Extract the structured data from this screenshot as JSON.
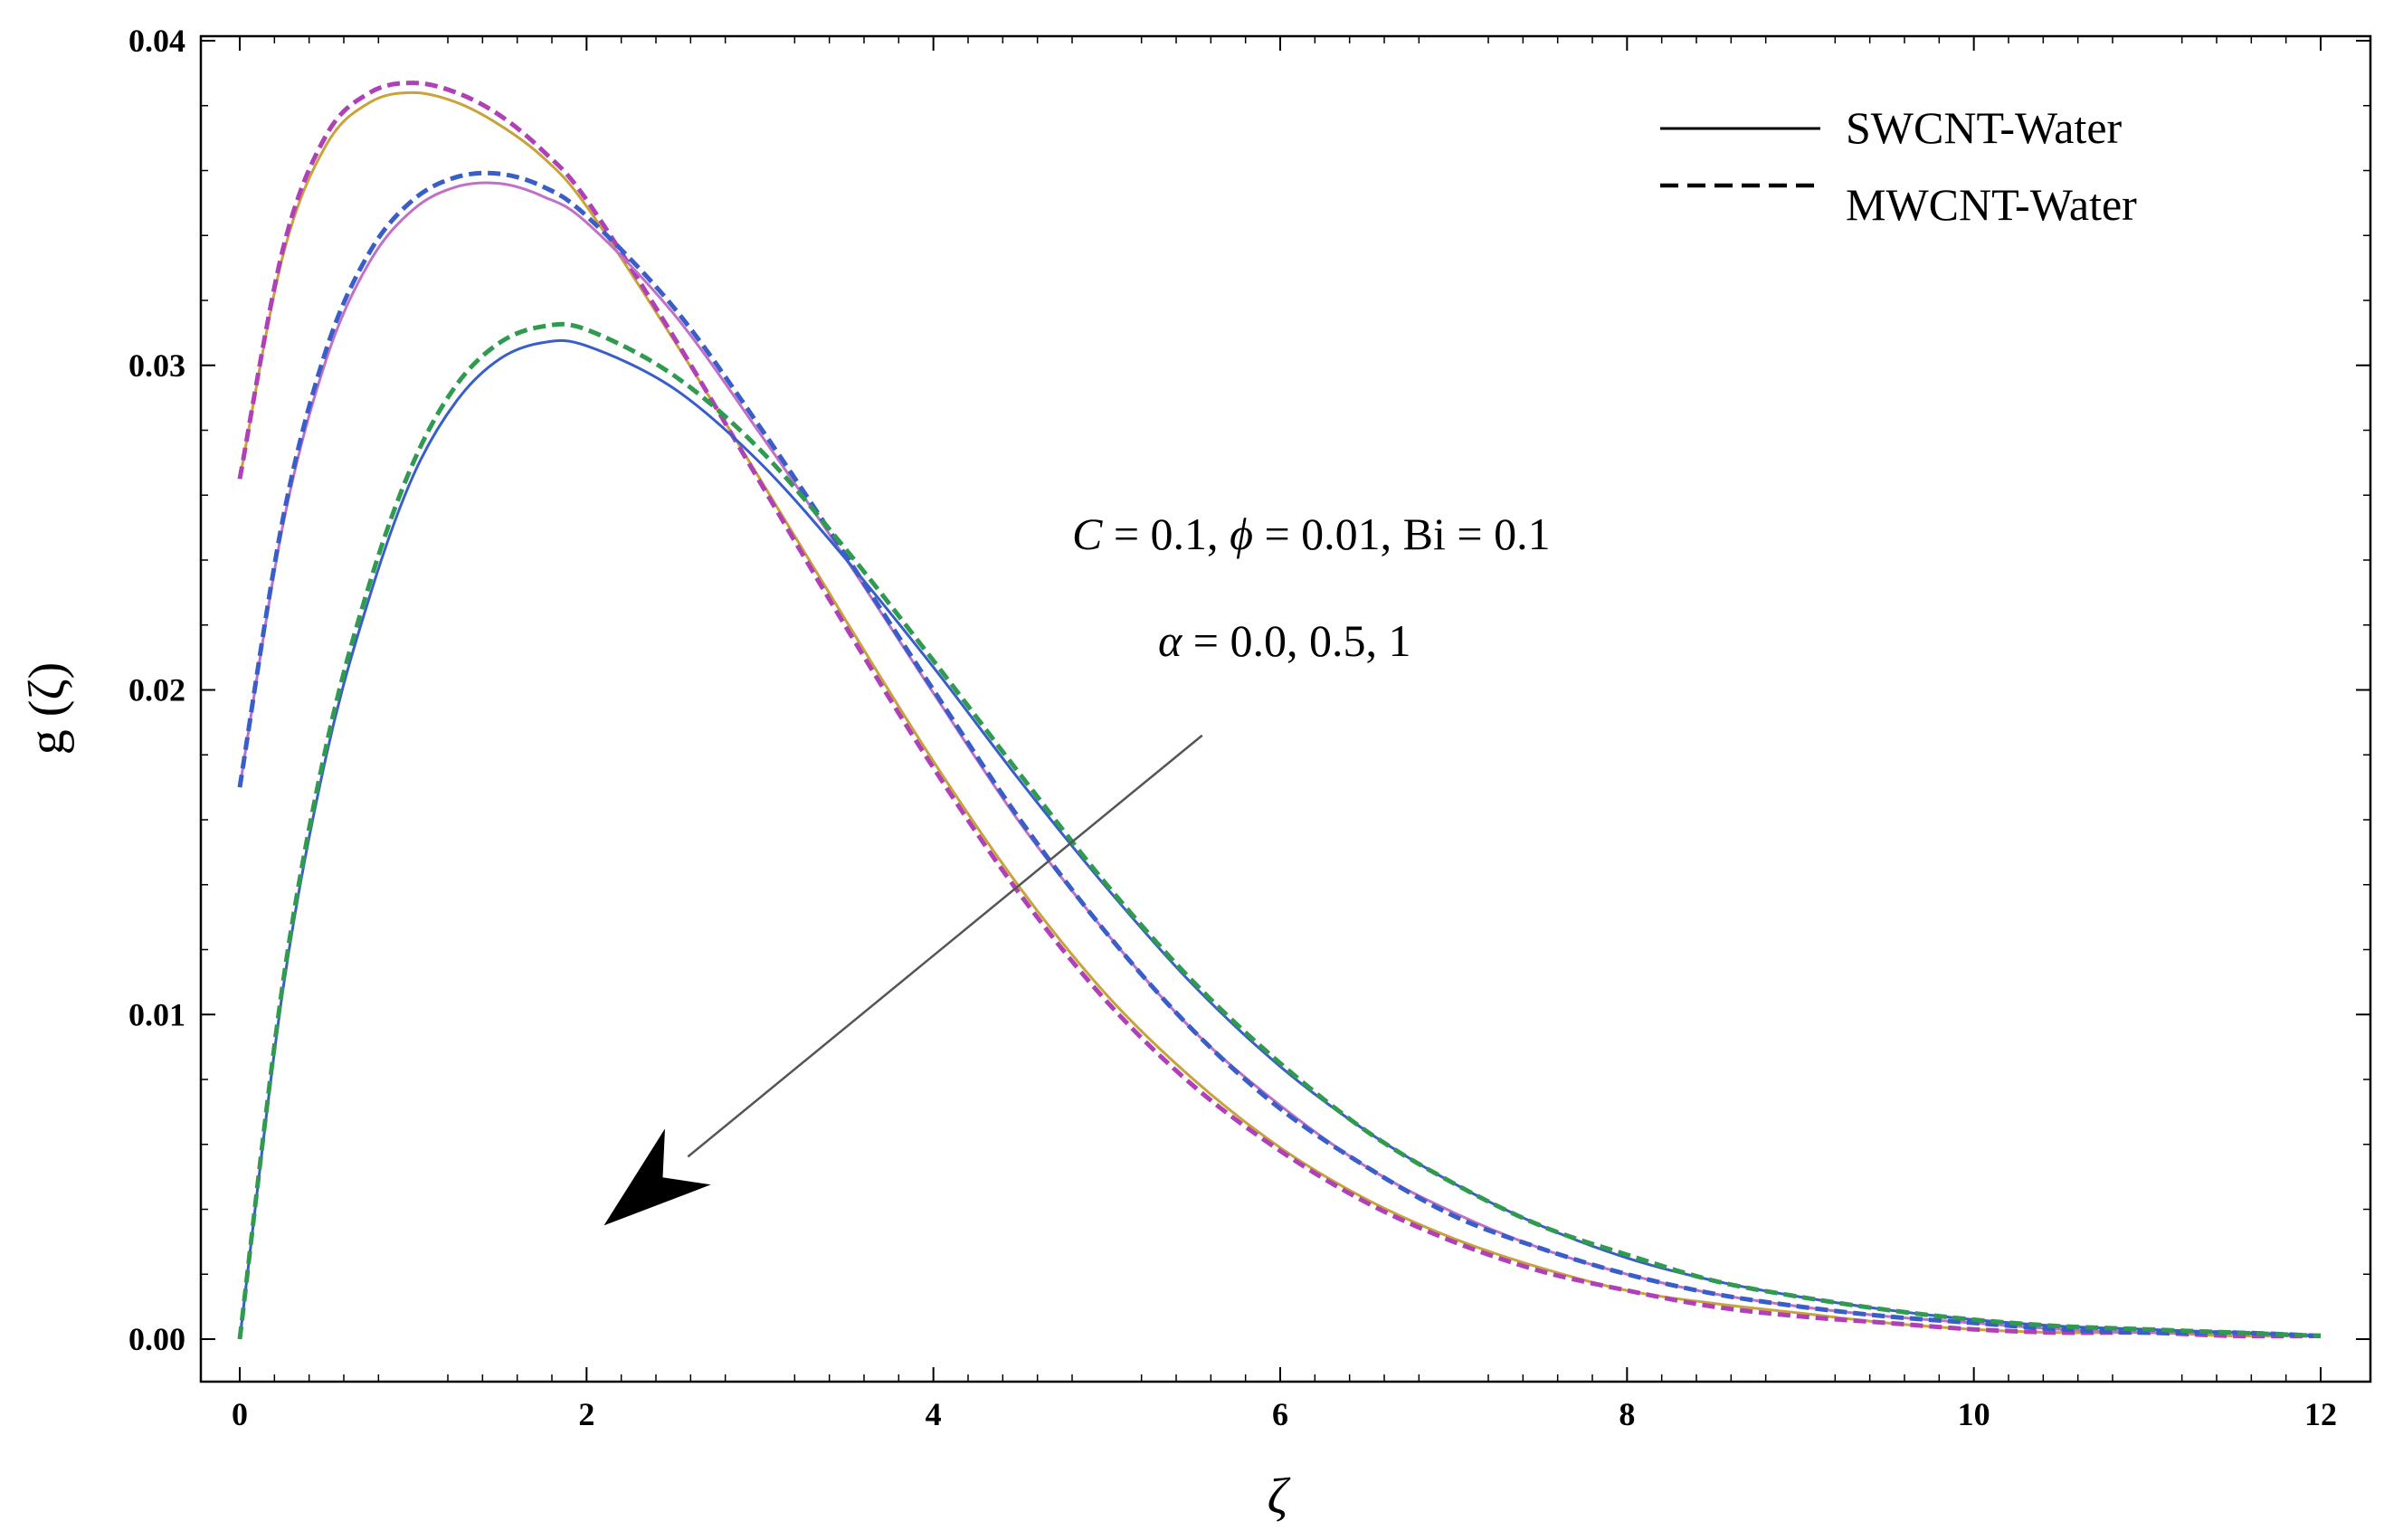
{
  "chart_data": {
    "type": "line",
    "title": "",
    "xlabel": "ζ",
    "ylabel": "g (ζ)",
    "xlim": [
      0,
      12
    ],
    "ylim": [
      0,
      0.04
    ],
    "x_ticks": [
      0,
      2,
      4,
      6,
      8,
      10,
      12
    ],
    "x_tick_labels": [
      "0",
      "2",
      "4",
      "6",
      "8",
      "10",
      "12"
    ],
    "y_ticks": [
      0,
      0.01,
      0.02,
      0.03,
      0.04
    ],
    "y_tick_labels": [
      "0.00",
      "0.01",
      "0.02",
      "0.03",
      "0.04"
    ],
    "grid": false,
    "legend": {
      "position": "top-right",
      "entries": [
        {
          "label": "SWCNT-Water",
          "style": "solid"
        },
        {
          "label": "MWCNT-Water",
          "style": "dashed"
        }
      ]
    },
    "annotation": {
      "line1": {
        "C": "C",
        "eq1": " = 0.1,  ",
        "phi": "ϕ",
        "eq2": " = 0.01,  Bi = 0.1"
      },
      "line2": {
        "alpha": "α",
        "eq": " = 0.0,  0.5,  1"
      },
      "arrow_from": [
        5.55,
        0.0186
      ],
      "arrow_to": [
        2.1,
        0.0035
      ]
    },
    "x": [
      0,
      0.25,
      0.5,
      0.75,
      1.0,
      1.25,
      1.5,
      1.75,
      2.0,
      2.5,
      3.0,
      3.5,
      4.0,
      4.5,
      5.0,
      5.5,
      6.0,
      6.5,
      7.0,
      7.5,
      8.0,
      8.5,
      9.0,
      9.5,
      10.0,
      10.5,
      11.0,
      11.5,
      12.0
    ],
    "series": [
      {
        "style": "solid",
        "color": "#c9a23a",
        "values": [
          0.0265,
          0.0334,
          0.0368,
          0.0381,
          0.0384,
          0.0381,
          0.0374,
          0.0364,
          0.0349,
          0.0308,
          0.0265,
          0.0221,
          0.0178,
          0.0139,
          0.0106,
          0.008,
          0.0059,
          0.0043,
          0.0031,
          0.0022,
          0.0015,
          0.0011,
          0.0008,
          0.0005,
          0.0003,
          0.0002,
          0.0002,
          0.0001,
          0.0001
        ]
      },
      {
        "style": "dashed",
        "color": "#b040b8",
        "values": [
          0.0265,
          0.0336,
          0.0371,
          0.0384,
          0.0387,
          0.0384,
          0.0377,
          0.0366,
          0.0351,
          0.0309,
          0.0264,
          0.0219,
          0.0176,
          0.0137,
          0.0104,
          0.0078,
          0.0058,
          0.0042,
          0.003,
          0.0021,
          0.0015,
          0.001,
          0.0007,
          0.0005,
          0.0003,
          0.0002,
          0.0002,
          0.0001,
          0.0001
        ]
      },
      {
        "style": "solid",
        "color": "#c070c8",
        "values": [
          0.017,
          0.0251,
          0.0302,
          0.0332,
          0.0348,
          0.0355,
          0.0356,
          0.0352,
          0.0344,
          0.0316,
          0.0279,
          0.024,
          0.0199,
          0.0159,
          0.0125,
          0.0095,
          0.0072,
          0.0053,
          0.0039,
          0.0028,
          0.002,
          0.0014,
          0.001,
          0.0007,
          0.0005,
          0.0003,
          0.0002,
          0.0002,
          0.0001
        ]
      },
      {
        "style": "dashed",
        "color": "#3a5ec8",
        "values": [
          0.017,
          0.0253,
          0.0305,
          0.0335,
          0.0351,
          0.0358,
          0.0359,
          0.0355,
          0.0346,
          0.0318,
          0.0281,
          0.0241,
          0.02,
          0.016,
          0.0125,
          0.0095,
          0.0071,
          0.0053,
          0.0038,
          0.0028,
          0.002,
          0.0014,
          0.001,
          0.0007,
          0.0005,
          0.0003,
          0.0002,
          0.0002,
          0.0001
        ]
      },
      {
        "style": "solid",
        "color": "#3a5ec8",
        "values": [
          0.0,
          0.0108,
          0.018,
          0.0229,
          0.0266,
          0.0289,
          0.0302,
          0.0307,
          0.0306,
          0.0293,
          0.027,
          0.024,
          0.0207,
          0.0172,
          0.0139,
          0.0109,
          0.0084,
          0.0064,
          0.0048,
          0.0035,
          0.0025,
          0.0018,
          0.0013,
          0.0009,
          0.0006,
          0.0004,
          0.0003,
          0.0002,
          0.0001
        ]
      },
      {
        "style": "dashed",
        "color": "#2f9a50",
        "values": [
          0.0,
          0.011,
          0.0183,
          0.0233,
          0.027,
          0.0294,
          0.0307,
          0.0312,
          0.0311,
          0.0297,
          0.0274,
          0.0243,
          0.0209,
          0.0174,
          0.014,
          0.011,
          0.0085,
          0.0064,
          0.0048,
          0.0035,
          0.0026,
          0.0018,
          0.0013,
          0.0009,
          0.0006,
          0.0004,
          0.0003,
          0.0002,
          0.0001
        ]
      }
    ]
  }
}
